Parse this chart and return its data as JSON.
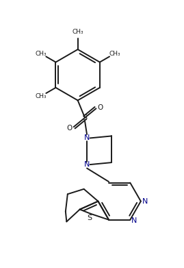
{
  "background_color": "#ffffff",
  "line_color": "#1a1a1a",
  "label_color": "#00008B",
  "lw": 1.4,
  "figsize": [
    2.69,
    3.91
  ],
  "dpi": 100,
  "xlim": [
    0,
    10
  ],
  "ylim": [
    0,
    14.5
  ]
}
